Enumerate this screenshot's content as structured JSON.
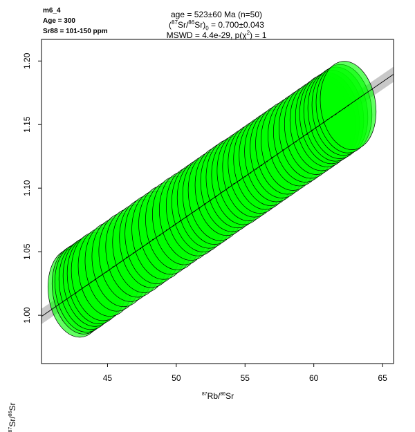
{
  "meta": {
    "sample": "m6_4",
    "age_label": "Age = 300",
    "sr_label": "Sr88 = 101-150 ppm"
  },
  "title": {
    "age": "age = 523±60 Ma (n=50)",
    "init_open": "(",
    "init_sup87": "87",
    "init_sr": "Sr/",
    "init_sup86": "86",
    "init_sr2": "Sr)",
    "init_sub": "0",
    "init_value": " = 0.700±0.043",
    "mswd": "MSWD = 4.4e-29, p(χ",
    "mswd_sup": "2",
    "mswd_tail": ") = 1"
  },
  "axes": {
    "x_sup1": "87",
    "x_txt1": "Rb/",
    "x_sup2": "86",
    "x_txt2": "Sr",
    "y_sup1": "87",
    "y_txt1": "Sr/",
    "y_sup2": "86",
    "y_txt2": "Sr"
  },
  "chart_data": {
    "type": "scatter",
    "subtype": "isochron error ellipses",
    "title": "age = 523±60 Ma (n=50)",
    "xlabel": "87Rb/86Sr",
    "ylabel": "87Sr/86Sr",
    "xlim": [
      40.2,
      65.8
    ],
    "ylim": [
      0.962,
      1.217
    ],
    "xticks": [
      45,
      50,
      55,
      60,
      65
    ],
    "yticks": [
      1.0,
      1.05,
      1.1,
      1.15,
      1.2
    ],
    "ytick_labels": [
      "1.00",
      "1.05",
      "1.10",
      "1.15",
      "1.20"
    ],
    "isochron": {
      "intercept": 0.7,
      "slope": 0.00744,
      "env_halfwidth": 0.006
    },
    "ellipse_semi_axes": {
      "x": 2.0,
      "y": 0.035
    },
    "ellipse_fill": "#00ff00",
    "ellipse_stroke": "#000000",
    "envelope_color": "#c8c8c8",
    "points": [
      {
        "x": 42.7,
        "y": 1.0175
      },
      {
        "x": 43.0,
        "y": 1.02
      },
      {
        "x": 43.2,
        "y": 1.0215
      },
      {
        "x": 43.5,
        "y": 1.0235
      },
      {
        "x": 43.8,
        "y": 1.026
      },
      {
        "x": 44.1,
        "y": 1.028
      },
      {
        "x": 44.4,
        "y": 1.0305
      },
      {
        "x": 44.9,
        "y": 1.034
      },
      {
        "x": 45.4,
        "y": 1.038
      },
      {
        "x": 45.9,
        "y": 1.0415
      },
      {
        "x": 46.4,
        "y": 1.0455
      },
      {
        "x": 46.9,
        "y": 1.049
      },
      {
        "x": 47.4,
        "y": 1.0525
      },
      {
        "x": 47.9,
        "y": 1.0565
      },
      {
        "x": 48.3,
        "y": 1.0595
      },
      {
        "x": 48.8,
        "y": 1.063
      },
      {
        "x": 49.3,
        "y": 1.067
      },
      {
        "x": 49.8,
        "y": 1.0705
      },
      {
        "x": 50.3,
        "y": 1.0745
      },
      {
        "x": 50.8,
        "y": 1.078
      },
      {
        "x": 51.3,
        "y": 1.0815
      },
      {
        "x": 51.7,
        "y": 1.0845
      },
      {
        "x": 52.1,
        "y": 1.0875
      },
      {
        "x": 52.5,
        "y": 1.0905
      },
      {
        "x": 52.9,
        "y": 1.0935
      },
      {
        "x": 53.4,
        "y": 1.0975
      },
      {
        "x": 53.8,
        "y": 1.1005
      },
      {
        "x": 54.2,
        "y": 1.1035
      },
      {
        "x": 54.6,
        "y": 1.106
      },
      {
        "x": 55.0,
        "y": 1.109
      },
      {
        "x": 55.4,
        "y": 1.112
      },
      {
        "x": 55.8,
        "y": 1.115
      },
      {
        "x": 56.2,
        "y": 1.118
      },
      {
        "x": 56.6,
        "y": 1.121
      },
      {
        "x": 57.0,
        "y": 1.124
      },
      {
        "x": 57.4,
        "y": 1.127
      },
      {
        "x": 57.8,
        "y": 1.13
      },
      {
        "x": 58.2,
        "y": 1.133
      },
      {
        "x": 58.7,
        "y": 1.1365
      },
      {
        "x": 59.1,
        "y": 1.1395
      },
      {
        "x": 59.5,
        "y": 1.1425
      },
      {
        "x": 59.9,
        "y": 1.1455
      },
      {
        "x": 60.3,
        "y": 1.1485
      },
      {
        "x": 60.7,
        "y": 1.1515
      },
      {
        "x": 61.0,
        "y": 1.154
      },
      {
        "x": 61.3,
        "y": 1.156
      },
      {
        "x": 61.6,
        "y": 1.158
      },
      {
        "x": 61.9,
        "y": 1.1605
      },
      {
        "x": 62.2,
        "y": 1.1625
      },
      {
        "x": 62.5,
        "y": 1.165
      }
    ]
  }
}
